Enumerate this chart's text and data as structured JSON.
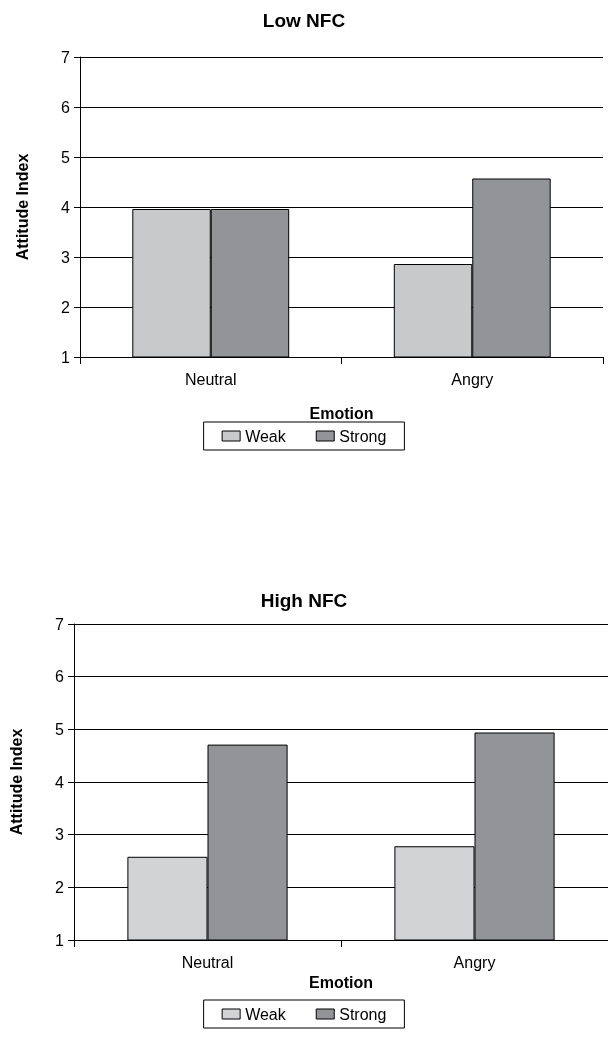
{
  "chart_data": [
    {
      "type": "bar",
      "title": "Low NFC",
      "xlabel": "Emotion",
      "ylabel": "Attitude Index",
      "categories": [
        "Neutral",
        "Angry"
      ],
      "series": [
        {
          "name": "Weak",
          "color": "#c8c9cb",
          "values": [
            3.96,
            2.86
          ]
        },
        {
          "name": "Strong",
          "color": "#939498",
          "values": [
            3.96,
            4.57
          ]
        }
      ],
      "ylim": [
        1,
        7
      ],
      "yticks": [
        1,
        2,
        3,
        4,
        5,
        6,
        7
      ],
      "grid": "y",
      "legend": "bottom"
    },
    {
      "type": "bar",
      "title": "High NFC",
      "xlabel": "Emotion",
      "ylabel": "Attitude Index",
      "categories": [
        "Neutral",
        "Angry"
      ],
      "series": [
        {
          "name": "Weak",
          "color": "#d2d3d5",
          "values": [
            2.58,
            2.78
          ]
        },
        {
          "name": "Strong",
          "color": "#939498",
          "values": [
            4.71,
            4.94
          ]
        }
      ],
      "ylim": [
        1,
        7
      ],
      "yticks": [
        1,
        2,
        3,
        4,
        5,
        6,
        7
      ],
      "grid": "y",
      "legend": "bottom"
    }
  ]
}
